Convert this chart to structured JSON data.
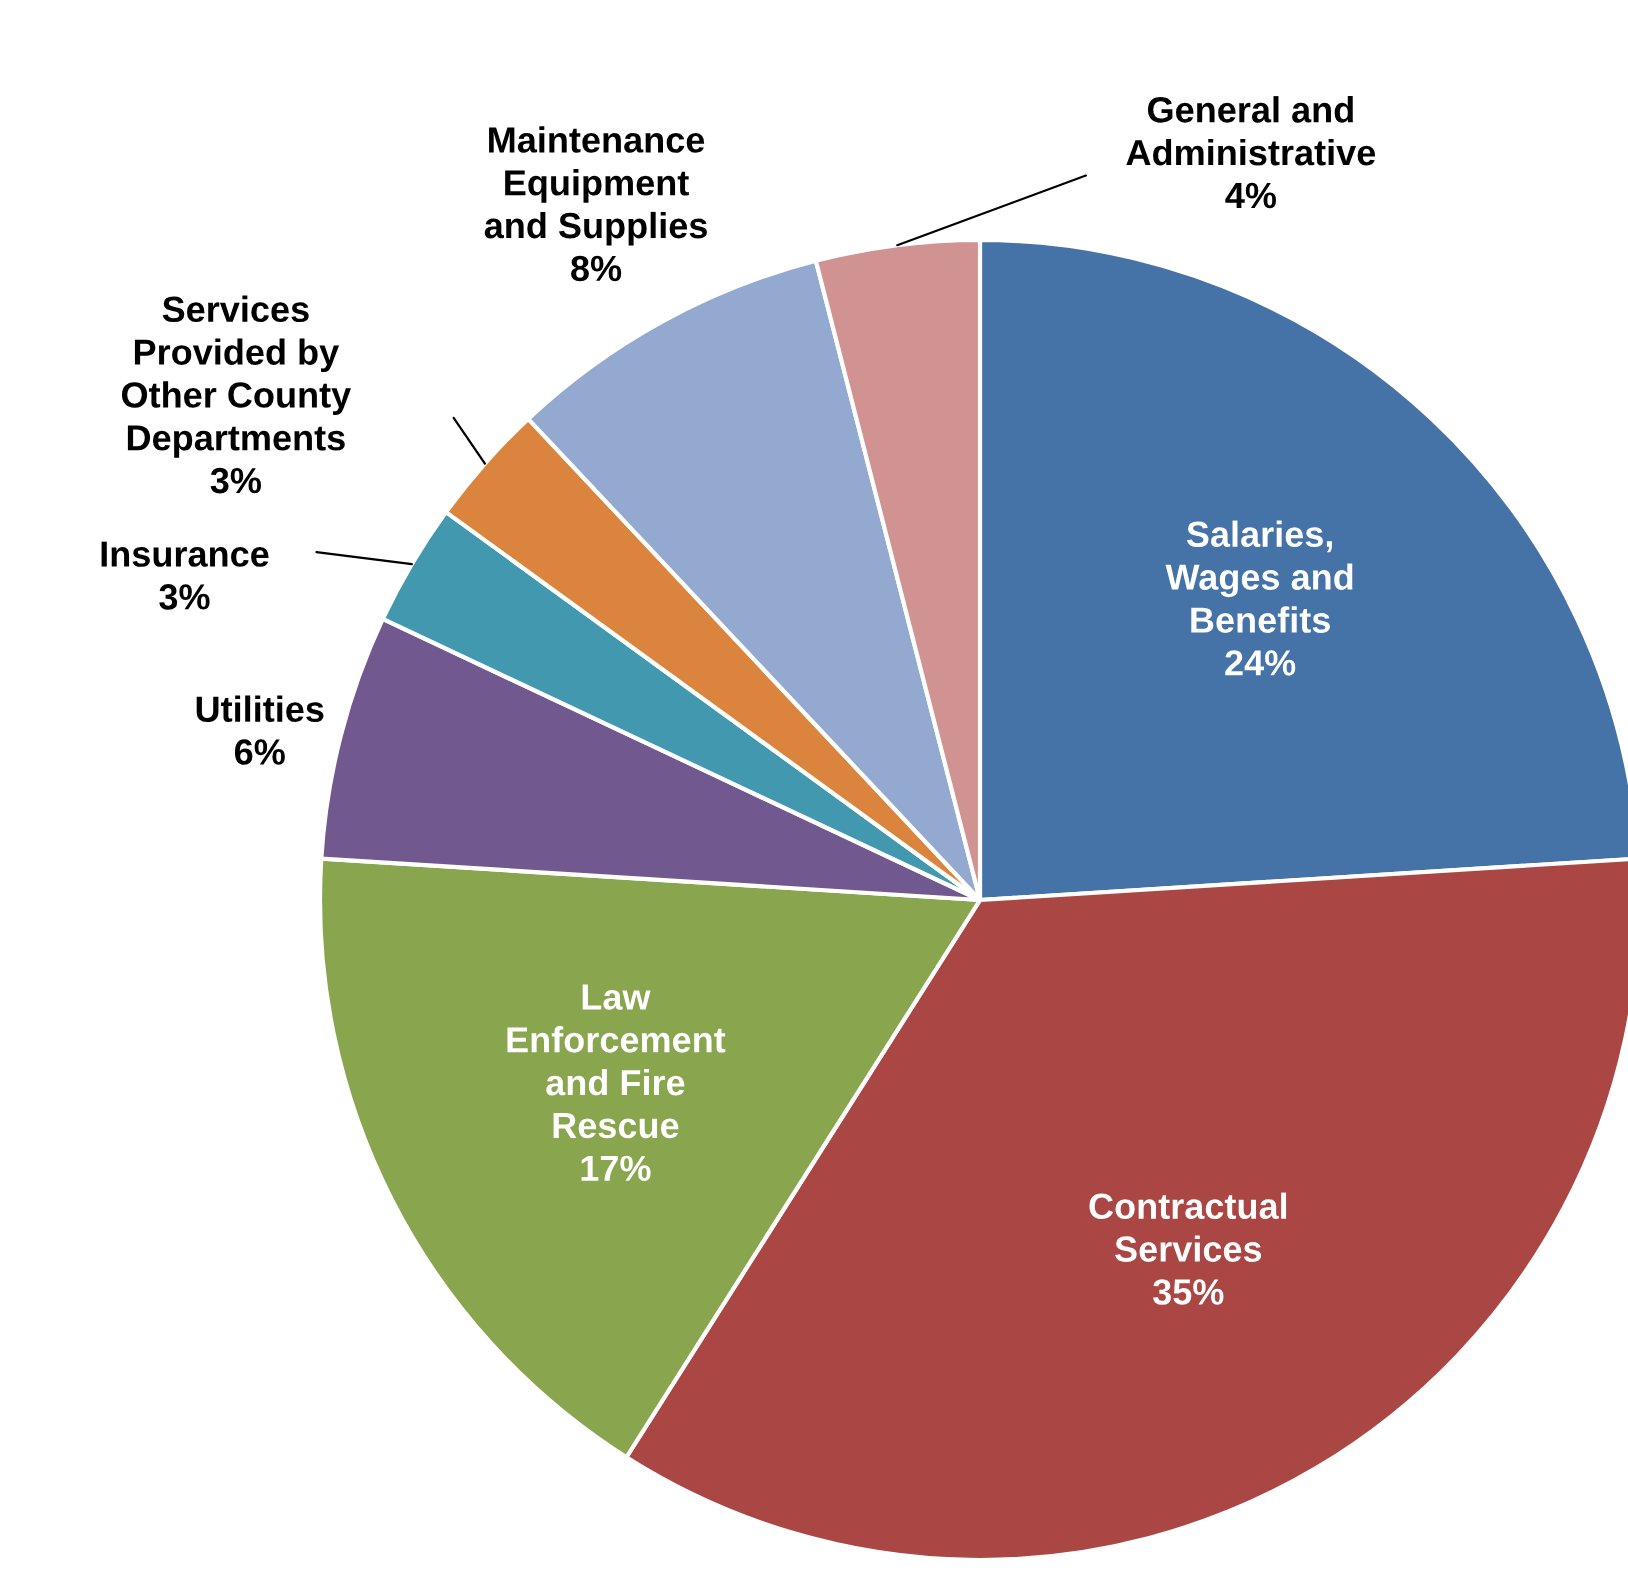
{
  "chart_data": {
    "type": "pie",
    "categories": [
      "Salaries,\nWages and\nBenefits",
      "Contractual\nServices",
      "Law\nEnforcement\nand Fire\nRescue",
      "Utilities",
      "Insurance",
      "Services\nProvided by\nOther County\nDepartments",
      "Maintenance\nEquipment\nand Supplies",
      "General and\nAdministrative"
    ],
    "values": [
      24,
      35,
      17,
      6,
      3,
      3,
      8,
      4
    ],
    "value_labels": [
      "24%",
      "35%",
      "17%",
      "6%",
      "3%",
      "3%",
      "8%",
      "4%"
    ],
    "colors": [
      "#4572a7",
      "#aa4643",
      "#89a54e",
      "#71588f",
      "#4198af",
      "#db843d",
      "#93a9cf",
      "#d19392"
    ],
    "legend": false
  }
}
